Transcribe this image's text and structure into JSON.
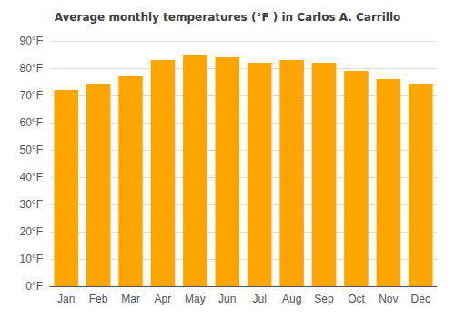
{
  "chart_data": {
    "type": "bar",
    "title": "Average monthly temperatures (°F ) in Carlos A. Carrillo",
    "categories": [
      "Jan",
      "Feb",
      "Mar",
      "Apr",
      "May",
      "Jun",
      "Jul",
      "Aug",
      "Sep",
      "Oct",
      "Nov",
      "Dec"
    ],
    "values": [
      72,
      74,
      77,
      83,
      85,
      84,
      82,
      83,
      82,
      79,
      76,
      74
    ],
    "color": "#FFA500",
    "ylim": [
      0,
      90
    ],
    "yticks": [
      {
        "value": 0,
        "label": "0°F"
      },
      {
        "value": 10,
        "label": "10°F"
      },
      {
        "value": 20,
        "label": "20°F"
      },
      {
        "value": 30,
        "label": "30°F"
      },
      {
        "value": 40,
        "label": "40°F"
      },
      {
        "value": 50,
        "label": "50°F"
      },
      {
        "value": 60,
        "label": "60°F"
      },
      {
        "value": 70,
        "label": "70°F"
      },
      {
        "value": 80,
        "label": "80°F"
      },
      {
        "value": 90,
        "label": "90°F"
      }
    ],
    "grid": true
  }
}
